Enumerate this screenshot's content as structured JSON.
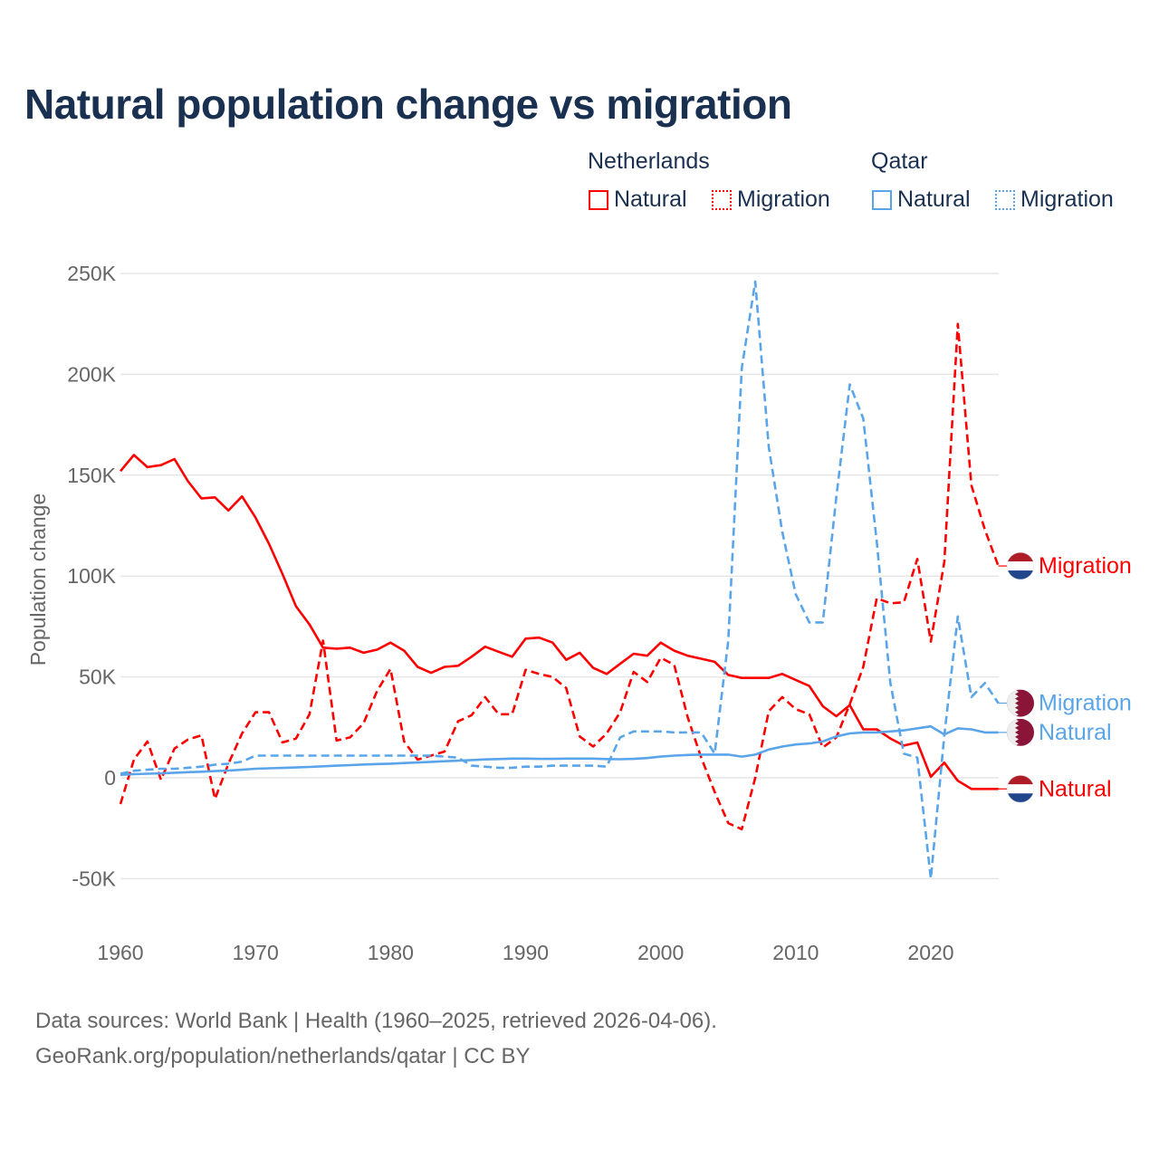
{
  "title": "Natural population change vs migration",
  "legend": {
    "groups": [
      {
        "name": "Netherlands",
        "items": [
          "Natural",
          "Migration"
        ],
        "color": "#ff0000"
      },
      {
        "name": "Qatar",
        "items": [
          "Natural",
          "Migration"
        ],
        "color": "#5aa5ea"
      }
    ]
  },
  "source": {
    "line1": "Data sources: World Bank | Health (1960–2025, retrieved 2026-04-06).",
    "line2": "GeoRank.org/population/netherlands/qatar | CC BY"
  },
  "chart_data": {
    "type": "line",
    "title": "Natural population change vs migration",
    "xlabel": "",
    "ylabel": "Population change",
    "xlim": [
      1960,
      2025
    ],
    "ylim": [
      -75000,
      250000
    ],
    "x_ticks": [
      "1960",
      "1970",
      "1980",
      "1990",
      "2000",
      "2010",
      "2020"
    ],
    "y_ticks": [
      {
        "v": -50000,
        "label": "-50K"
      },
      {
        "v": 0,
        "label": "0"
      },
      {
        "v": 50000,
        "label": "50K"
      },
      {
        "v": 100000,
        "label": "100K"
      },
      {
        "v": 150000,
        "label": "150K"
      },
      {
        "v": 200000,
        "label": "200K"
      },
      {
        "v": 250000,
        "label": "250K"
      }
    ],
    "grid": true,
    "legend_position": "top-right",
    "x_start": 1960,
    "series": [
      {
        "name": "Netherlands Natural",
        "country": "Netherlands",
        "label": "Natural",
        "color": "#ff0000",
        "dash": false,
        "values_k": [
          152,
          160,
          154,
          155,
          158,
          147,
          138.5,
          139,
          132.5,
          139.5,
          129,
          116,
          101,
          85,
          76,
          64.5,
          64,
          64.5,
          62,
          63.5,
          67,
          63,
          55,
          52,
          55,
          55.5,
          60,
          65,
          62.5,
          60,
          69,
          69.5,
          67,
          58.5,
          62,
          54.5,
          51.5,
          56.5,
          61.5,
          60.5,
          67,
          63,
          60.5,
          59,
          57.5,
          51,
          49.5,
          49.5,
          49.5,
          51.5,
          48.5,
          45.5,
          35.5,
          30.5,
          36,
          24,
          24,
          19.5,
          16,
          17.5,
          0.5,
          7.5,
          -1.5,
          -5.5,
          -5.5,
          -5.5
        ]
      },
      {
        "name": "Netherlands Migration",
        "country": "Netherlands",
        "label": "Migration",
        "color": "#ff0000",
        "dash": true,
        "values_k": [
          -13,
          9,
          18,
          -1,
          14.5,
          19,
          21,
          -10.5,
          7,
          22,
          32.5,
          32.5,
          17.5,
          19.5,
          31.5,
          68,
          18.5,
          20,
          27,
          43,
          54,
          18,
          9,
          11,
          13,
          28,
          31,
          40,
          31.5,
          31.5,
          53.5,
          51.5,
          50,
          44.5,
          20.5,
          15.5,
          22,
          32.5,
          52.5,
          47.5,
          59.5,
          56,
          30,
          10,
          -7,
          -22.5,
          -25.5,
          0,
          33,
          40,
          34,
          31.5,
          15,
          20,
          36.5,
          55,
          89,
          86.5,
          87,
          108.5,
          67.5,
          107,
          225,
          145,
          123,
          105
        ]
      },
      {
        "name": "Qatar Natural",
        "country": "Qatar",
        "label": "Natural",
        "color": "#5aa5ea",
        "dash": false,
        "values_k": [
          1.5,
          1.8,
          2,
          2.2,
          2.5,
          2.8,
          3,
          3.3,
          3.6,
          4,
          4.5,
          4.7,
          4.9,
          5.1,
          5.4,
          5.7,
          6,
          6.3,
          6.6,
          6.8,
          7,
          7.3,
          7.6,
          7.9,
          8.2,
          8.5,
          8.8,
          9.1,
          9.3,
          9.5,
          9.5,
          9.4,
          9.4,
          9.5,
          9.5,
          9.5,
          9.3,
          9.2,
          9.4,
          9.8,
          10.5,
          11,
          11.3,
          11.5,
          11.5,
          11.5,
          10.5,
          11.5,
          14,
          15.5,
          16.5,
          17,
          18,
          20.5,
          22,
          22.5,
          22.5,
          23,
          23.5,
          24.5,
          25.5,
          21.5,
          24.5,
          24,
          22.5,
          22.5
        ]
      },
      {
        "name": "Qatar Migration",
        "country": "Qatar",
        "label": "Migration",
        "color": "#5aa5ea",
        "dash": true,
        "values_k": [
          2,
          3.5,
          4,
          4.5,
          4.5,
          5,
          5.5,
          6.5,
          7,
          8,
          11,
          11,
          11,
          11,
          11,
          11,
          11,
          11,
          11,
          11,
          11,
          11,
          11,
          11,
          10.5,
          10,
          6,
          5.5,
          5,
          5,
          5.5,
          5.5,
          6,
          6,
          6,
          6,
          5.5,
          20,
          23,
          23,
          23,
          22.5,
          22.5,
          22.5,
          12,
          68,
          203,
          246,
          164,
          122,
          91,
          77,
          77,
          139,
          195,
          178,
          117,
          47,
          12,
          10,
          -50,
          21,
          80,
          40,
          47,
          37
        ]
      }
    ]
  }
}
